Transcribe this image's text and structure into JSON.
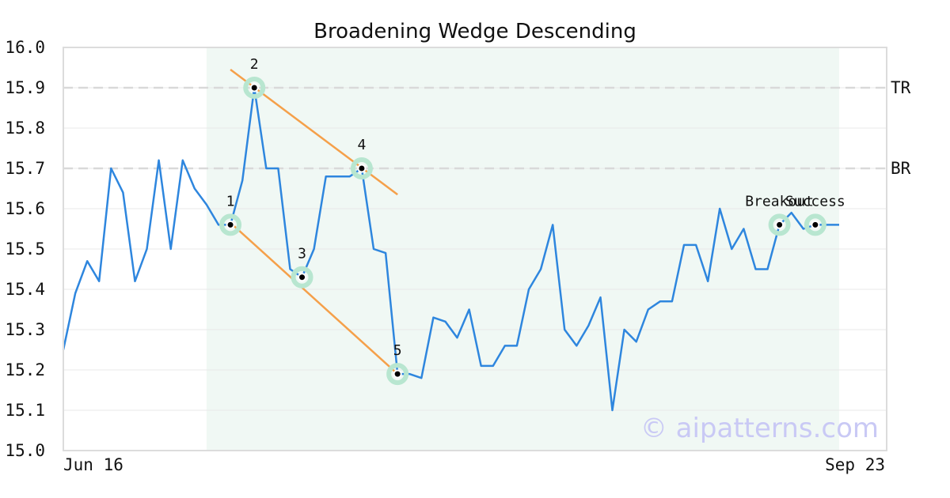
{
  "chart_data": {
    "type": "line",
    "title": "Broadening Wedge Descending",
    "xlabel": "",
    "ylabel": "",
    "x_tick_labels": [
      "Jun 16",
      "Sep 23"
    ],
    "ylim": [
      15.0,
      16.0
    ],
    "y_ticks": [
      "15.0",
      "15.1",
      "15.2",
      "15.3",
      "15.4",
      "15.5",
      "15.6",
      "15.7",
      "15.8",
      "15.9",
      "16.0"
    ],
    "grid": true,
    "series": [
      {
        "values": [
          15.25,
          15.39,
          15.47,
          15.42,
          15.7,
          15.64,
          15.42,
          15.5,
          15.72,
          15.5,
          15.72,
          15.65,
          15.61,
          15.56,
          15.56,
          15.67,
          15.9,
          15.7,
          15.7,
          15.45,
          15.43,
          15.5,
          15.68,
          15.68,
          15.68,
          15.7,
          15.5,
          15.49,
          15.19,
          15.19,
          15.18,
          15.33,
          15.32,
          15.28,
          15.35,
          15.21,
          15.21,
          15.26,
          15.26,
          15.4,
          15.45,
          15.56,
          15.3,
          15.26,
          15.31,
          15.38,
          15.1,
          15.3,
          15.27,
          15.35,
          15.37,
          15.37,
          15.51,
          15.51,
          15.42,
          15.6,
          15.5,
          15.55,
          15.45,
          15.45,
          15.56,
          15.59,
          15.55,
          15.56,
          15.56,
          15.56
        ]
      }
    ],
    "pattern_region": {
      "start_index": 12,
      "end_index": 65
    },
    "reference_lines": [
      {
        "label": "TR",
        "value": 15.9
      },
      {
        "label": "BR",
        "value": 15.7
      }
    ],
    "trendlines": [
      {
        "from": [
          14,
          15.945
        ],
        "to": [
          28,
          15.635
        ]
      },
      {
        "from": [
          14,
          15.565
        ],
        "to": [
          28,
          15.19
        ]
      }
    ],
    "pivots": [
      {
        "label": "1",
        "index": 14,
        "value": 15.56
      },
      {
        "label": "2",
        "index": 16,
        "value": 15.9
      },
      {
        "label": "3",
        "index": 20,
        "value": 15.43
      },
      {
        "label": "4",
        "index": 25,
        "value": 15.7
      },
      {
        "label": "5",
        "index": 28,
        "value": 15.19
      },
      {
        "label": "Breakout",
        "index": 60,
        "value": 15.56
      },
      {
        "label": "Success",
        "index": 63,
        "value": 15.56
      }
    ],
    "watermark": "© aipatterns.com",
    "colors": {
      "line": "#2e86de",
      "trendline": "#f5a04a",
      "region": "#f0f8f4",
      "pivot_halo": "#b8e6d0",
      "reference": "#d9d9d9",
      "grid": "#e8e8e8"
    }
  }
}
